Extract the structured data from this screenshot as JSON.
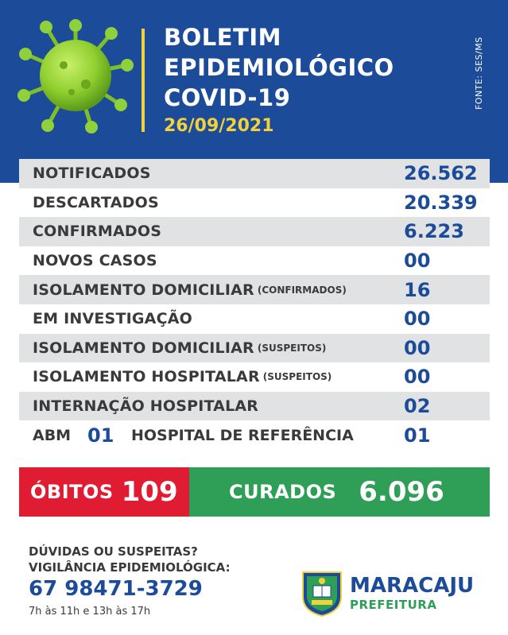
{
  "header": {
    "title_lines": [
      "BOLETIM",
      "EPIDEMIOLÓGICO",
      "COVID-19"
    ],
    "date": "26/09/2021",
    "source": "FONTE: SES/MS",
    "accent_color": "#f2d23a",
    "background_color": "#1c4b9a"
  },
  "rows": [
    {
      "label": "NOTIFICADOS",
      "sub": "",
      "value": "26.562"
    },
    {
      "label": "DESCARTADOS",
      "sub": "",
      "value": "20.339"
    },
    {
      "label": "CONFIRMADOS",
      "sub": "",
      "value": "6.223"
    },
    {
      "label": "NOVOS CASOS",
      "sub": "",
      "value": "00"
    },
    {
      "label": "ISOLAMENTO DOMICILIAR",
      "sub": "(CONFIRMADOS)",
      "value": "16"
    },
    {
      "label": "EM INVESTIGAÇÃO",
      "sub": "",
      "value": "00"
    },
    {
      "label": "ISOLAMENTO DOMICILIAR",
      "sub": "(SUSPEITOS)",
      "value": "00"
    },
    {
      "label": "ISOLAMENTO HOSPITALAR",
      "sub": "(SUSPEITOS)",
      "value": "00"
    },
    {
      "label": "INTERNAÇÃO HOSPITALAR",
      "sub": "",
      "value": "02"
    }
  ],
  "abm": {
    "label": "ABM",
    "value": "01",
    "hospital_label": "HOSPITAL DE REFERÊNCIA",
    "hospital_value": "01"
  },
  "obitos": {
    "label": "ÓBITOS",
    "value": "109",
    "color": "#e01c33"
  },
  "curados": {
    "label": "CURADOS",
    "value": "6.096",
    "color": "#2f9e57"
  },
  "footer": {
    "line1": "DÚVIDAS OU SUSPEITAS?",
    "line2": "VIGILÂNCIA EPIDEMIOLÓGICA:",
    "phone": "67 98471-3729",
    "hours": "7h às 11h e 13h às 17h",
    "city": "MARACAJU",
    "prefeitura": "PREFEITURA"
  }
}
